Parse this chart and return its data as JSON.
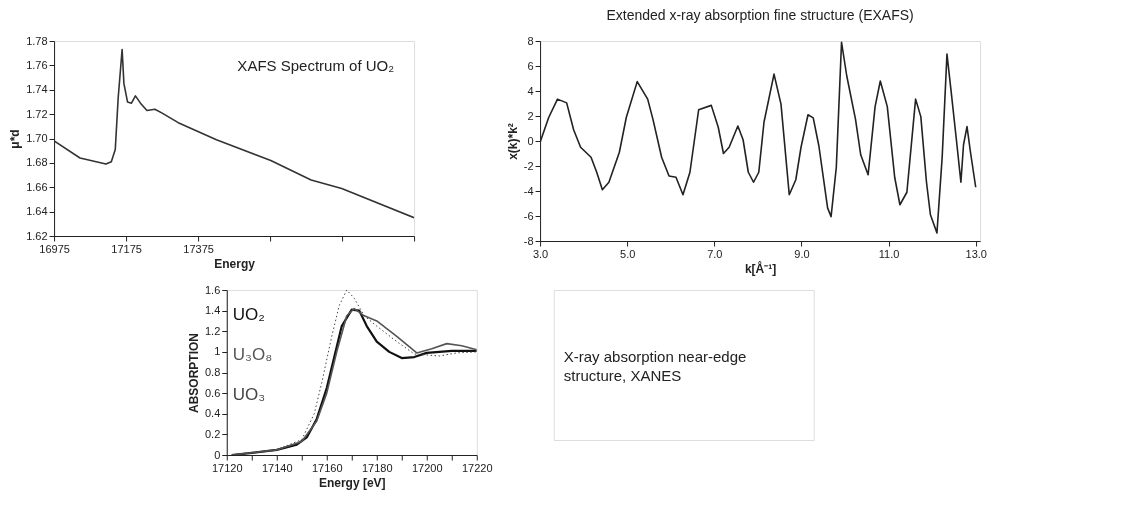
{
  "chart_data": [
    {
      "type": "line",
      "title": "XAFS Spectrum of UO₂",
      "xlabel": "Energy",
      "ylabel": "μ*d",
      "series": [
        {
          "color": "#333333",
          "x": [
            16975,
            17047,
            17119,
            17134,
            17145,
            17153,
            17164,
            17169,
            17179,
            17190,
            17201,
            17215,
            17233,
            17255,
            17274,
            17320,
            17426,
            17577,
            17689,
            17774,
            17975
          ],
          "values": [
            1.698,
            1.684,
            1.679,
            1.681,
            1.691,
            1.733,
            1.773,
            1.745,
            1.73,
            1.729,
            1.735,
            1.729,
            1.723,
            1.724,
            1.721,
            1.713,
            1.699,
            1.682,
            1.666,
            1.659,
            1.635
          ]
        }
      ],
      "xlim": [
        16975,
        17975
      ],
      "xticks": [
        16975,
        17175,
        17375,
        {
          "value": 17575,
          "label": null
        },
        {
          "value": 17775,
          "label": null
        },
        {
          "value": 17975,
          "label": null
        }
      ],
      "ylim": [
        1.62,
        1.78
      ],
      "yticks": [
        1.62,
        1.64,
        1.66,
        1.68,
        {
          "value": 1.7,
          "label": "1.70"
        },
        1.72,
        1.74,
        1.76,
        1.78
      ],
      "grid": false,
      "legend": false,
      "line_style": "solid"
    },
    {
      "type": "line",
      "title": "Extended x-ray absorption fine structure (EXAFS)",
      "xlabel": "k[Å⁻¹]",
      "ylabel": "x(k)*k²",
      "series": [
        {
          "color": "#222222",
          "x": [
            3.0,
            3.2,
            3.4,
            3.61,
            3.77,
            3.93,
            4.17,
            4.3,
            4.43,
            4.58,
            4.82,
            4.98,
            5.23,
            5.47,
            5.59,
            5.79,
            5.96,
            6.12,
            6.28,
            6.44,
            6.64,
            6.93,
            7.09,
            7.21,
            7.34,
            7.54,
            7.66,
            7.78,
            7.9,
            8.02,
            8.14,
            8.37,
            8.53,
            8.72,
            8.87,
            8.99,
            9.15,
            9.27,
            9.4,
            9.6,
            9.68,
            9.8,
            9.92,
            10.04,
            10.24,
            10.36,
            10.53,
            10.69,
            10.81,
            10.97,
            11.14,
            11.26,
            11.42,
            11.62,
            11.74,
            11.87,
            11.96,
            12.11,
            12.23,
            12.34,
            12.43,
            12.55,
            12.66,
            12.72,
            12.8,
            12.88,
            13.0
          ],
          "values": [
            -0.1,
            1.9,
            3.35,
            3.05,
            0.9,
            -0.5,
            -1.3,
            -2.5,
            -3.9,
            -3.3,
            -0.9,
            1.9,
            4.75,
            3.35,
            1.75,
            -1.3,
            -2.8,
            -2.9,
            -4.3,
            -2.5,
            2.5,
            2.85,
            1.1,
            -1.0,
            -0.5,
            1.2,
            0.1,
            -2.5,
            -3.3,
            -2.5,
            1.5,
            5.35,
            2.95,
            -4.3,
            -3.1,
            -0.5,
            2.1,
            1.85,
            -0.4,
            -5.35,
            -6.05,
            -2.1,
            7.9,
            5.2,
            1.75,
            -1.1,
            -2.7,
            2.75,
            4.8,
            2.75,
            -2.9,
            -5.1,
            -4.1,
            3.35,
            1.95,
            -3.3,
            -5.9,
            -7.35,
            -1.3,
            6.95,
            4.15,
            0.3,
            -3.3,
            -0.3,
            1.15,
            -0.9,
            -3.7
          ]
        }
      ],
      "xlim": [
        3.0,
        13.1
      ],
      "xticks": [
        {
          "value": 3,
          "label": "3.0"
        },
        {
          "value": 5,
          "label": "5.0"
        },
        {
          "value": 7,
          "label": "7.0"
        },
        {
          "value": 9,
          "label": "9.0"
        },
        {
          "value": 11,
          "label": "11.0"
        },
        {
          "value": 13,
          "label": "13.0"
        }
      ],
      "ylim": [
        -8,
        8
      ],
      "yticks": [
        -8,
        -6,
        -4,
        -2,
        0,
        2,
        4,
        6,
        8
      ],
      "grid": false,
      "legend": false,
      "line_style": "solid"
    },
    {
      "type": "line",
      "xlabel": "Energy [eV]",
      "ylabel": "ABSORPTION",
      "annotations": [
        "X-ray absorption near-edge structure, XANES"
      ],
      "series": [
        {
          "name": "UO₂",
          "color": "#111111",
          "line_style": "solid",
          "x": [
            17122,
            17130,
            17140,
            17148,
            17152,
            17156,
            17160,
            17163,
            17166,
            17170,
            17173,
            17176,
            17180,
            17185,
            17190,
            17195,
            17200,
            17210,
            17220
          ],
          "values": [
            0.0,
            0.02,
            0.05,
            0.1,
            0.17,
            0.35,
            0.65,
            0.95,
            1.25,
            1.41,
            1.4,
            1.25,
            1.1,
            1.0,
            0.94,
            0.95,
            0.99,
            1.01,
            1.01
          ]
        },
        {
          "name": "U₃O₈",
          "color": "#555555",
          "line_style": "solid",
          "x": [
            17122,
            17140,
            17150,
            17156,
            17160,
            17164,
            17168,
            17171,
            17175,
            17180,
            17188,
            17196,
            17202,
            17208,
            17214,
            17220
          ],
          "values": [
            0.0,
            0.05,
            0.13,
            0.33,
            0.6,
            1.0,
            1.35,
            1.42,
            1.35,
            1.3,
            1.15,
            0.99,
            1.03,
            1.08,
            1.06,
            1.02
          ]
        },
        {
          "name": "UO₃",
          "color": "#444444",
          "line_style": "dotted",
          "x": [
            17122,
            17140,
            17150,
            17155,
            17158,
            17162,
            17165,
            17168,
            17171,
            17175,
            17180,
            17188,
            17195,
            17205,
            17212,
            17220
          ],
          "values": [
            0.0,
            0.05,
            0.15,
            0.4,
            0.7,
            1.15,
            1.45,
            1.6,
            1.52,
            1.35,
            1.25,
            1.1,
            0.98,
            0.96,
            0.99,
            1.0
          ]
        }
      ],
      "xlim": [
        17120,
        17220
      ],
      "xticks": [
        17120,
        {
          "value": 17130,
          "label": null
        },
        17140,
        {
          "value": 17150,
          "label": null
        },
        17160,
        {
          "value": 17170,
          "label": null
        },
        17180,
        {
          "value": 17190,
          "label": null
        },
        17200,
        {
          "value": 17210,
          "label": null
        },
        17220
      ],
      "ylim": [
        0,
        1.6
      ],
      "yticks": [
        0,
        0.2,
        0.4,
        0.6,
        0.8,
        1,
        1.2,
        1.4,
        1.6
      ],
      "grid": false,
      "legend": "left"
    }
  ]
}
